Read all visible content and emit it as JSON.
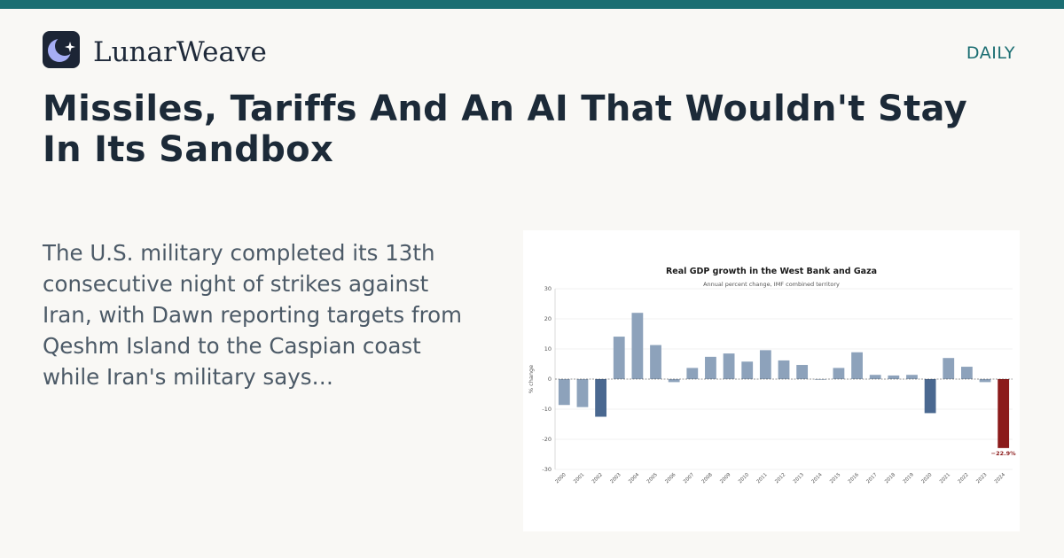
{
  "brand": {
    "name": "LunarWeave",
    "section": "DAILY"
  },
  "article": {
    "headline": "Missiles, Tariffs And An AI That Wouldn't Stay In Its Sandbox",
    "summary": "The U.S. military completed its 13th consecutive night of strikes against Iran, with Dawn reporting targets from Qeshm Island to the Caspian coast while Iran's military says…"
  },
  "colors": {
    "accent": "#1b6e72",
    "bar_default": "#8da2bb",
    "bar_highlight": "#4a6890",
    "bar_latest": "#8b1a1a"
  },
  "chart_data": {
    "type": "bar",
    "title": "Real GDP growth in the West Bank and Gaza",
    "subtitle": "Annual percent change, IMF combined territory",
    "ylabel": "% change",
    "xlabel": "",
    "ylim": [
      -30,
      30
    ],
    "yticks": [
      30,
      20,
      10,
      0,
      -10,
      -20,
      -30
    ],
    "grid": true,
    "categories": [
      "2000",
      "2001",
      "2002",
      "2003",
      "2004",
      "2005",
      "2006",
      "2007",
      "2008",
      "2009",
      "2010",
      "2011",
      "2012",
      "2013",
      "2014",
      "2015",
      "2016",
      "2017",
      "2018",
      "2019",
      "2020",
      "2021",
      "2022",
      "2023",
      "2024"
    ],
    "values": [
      -8.6,
      -9.3,
      -12.5,
      14.1,
      22.0,
      11.3,
      -1.0,
      3.7,
      7.4,
      8.5,
      5.8,
      9.6,
      6.2,
      4.7,
      -0.2,
      3.7,
      8.9,
      1.4,
      1.2,
      1.4,
      -11.3,
      7.0,
      4.1,
      -1.0,
      -22.9
    ],
    "highlight": [
      "2002",
      "2020"
    ],
    "latest": "2024",
    "data_labels": [
      {
        "category": "2024",
        "text": "−22.9%"
      }
    ]
  }
}
